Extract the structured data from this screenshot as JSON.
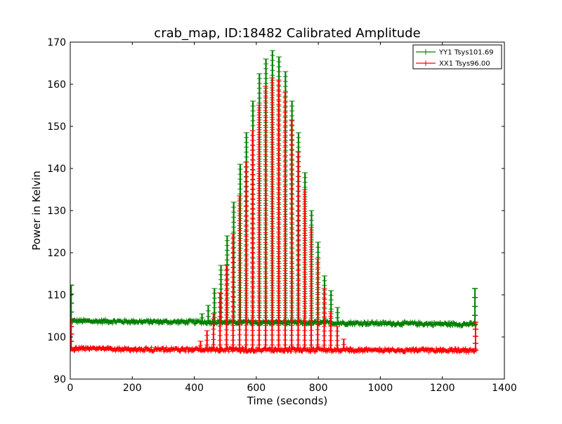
{
  "chart_data": {
    "type": "line",
    "title": "crab_map, ID:18482 Calibrated Amplitude",
    "xlabel": "Time (seconds)",
    "ylabel": "Power in Kelvin",
    "xlim": [
      0,
      1400
    ],
    "ylim": [
      90,
      170
    ],
    "xticks": [
      0,
      200,
      400,
      600,
      800,
      1000,
      1200,
      1400
    ],
    "yticks": [
      90,
      100,
      110,
      120,
      130,
      140,
      150,
      160,
      170
    ],
    "grid": false,
    "legend_position": "top-right",
    "series": [
      {
        "name": "YY1 Tsys101.69",
        "color": "#008000",
        "marker": "+",
        "baseline": [
          [
            0,
            103.8
          ],
          [
            300,
            103.6
          ],
          [
            900,
            103.3
          ],
          [
            1310,
            103.0
          ]
        ],
        "scan_peaks": [
          [
            425,
            105.5
          ],
          [
            445,
            107.5
          ],
          [
            465,
            111.5
          ],
          [
            486,
            117
          ],
          [
            506,
            124
          ],
          [
            527,
            132
          ],
          [
            548,
            141
          ],
          [
            568,
            148.5
          ],
          [
            589,
            156
          ],
          [
            610,
            162.5
          ],
          [
            631,
            166
          ],
          [
            652,
            168
          ],
          [
            673,
            166.5
          ],
          [
            694,
            163
          ],
          [
            715,
            156
          ],
          [
            736,
            148.5
          ],
          [
            757,
            139
          ],
          [
            778,
            130
          ],
          [
            799,
            122.5
          ],
          [
            820,
            114.5
          ],
          [
            841,
            111
          ],
          [
            862,
            107
          ]
        ],
        "edge_spikes": [
          [
            3,
            112.3
          ],
          [
            1305,
            111.5
          ]
        ]
      },
      {
        "name": "XX1 Tsys96.00",
        "color": "#ff0000",
        "marker": "+",
        "baseline": [
          [
            0,
            97.2
          ],
          [
            300,
            97.0
          ],
          [
            900,
            96.9
          ],
          [
            1310,
            96.8
          ]
        ],
        "scan_peaks": [
          [
            420,
            99
          ],
          [
            441,
            101.5
          ],
          [
            462,
            105.5
          ],
          [
            483,
            110.5
          ],
          [
            504,
            117
          ],
          [
            525,
            124.5
          ],
          [
            546,
            133.5
          ],
          [
            567,
            141.5
          ],
          [
            588,
            149
          ],
          [
            609,
            155
          ],
          [
            630,
            159.5
          ],
          [
            651,
            161.5
          ],
          [
            672,
            161
          ],
          [
            693,
            158
          ],
          [
            714,
            151.5
          ],
          [
            735,
            144
          ],
          [
            756,
            135
          ],
          [
            777,
            126
          ],
          [
            798,
            118.5
          ],
          [
            819,
            111.5
          ],
          [
            840,
            106
          ],
          [
            861,
            102.5
          ],
          [
            882,
            99.5
          ]
        ],
        "edge_spikes": [
          [
            3,
            104.2
          ],
          [
            1307,
            103.5
          ]
        ]
      }
    ]
  }
}
